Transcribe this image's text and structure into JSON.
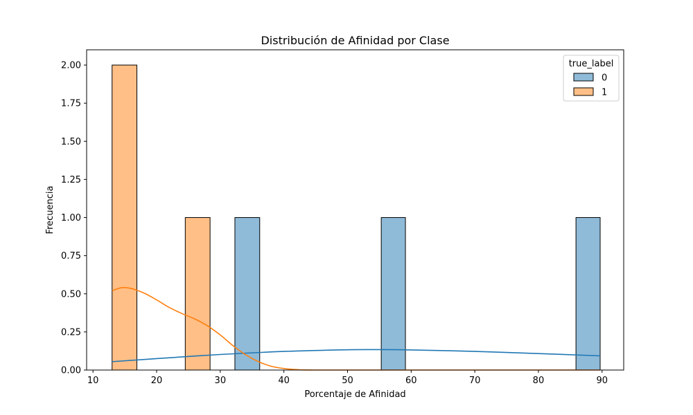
{
  "chart_data": {
    "type": "bar",
    "title": "Distribución de Afinidad por Clase",
    "xlabel": "Porcentaje de Afinidad",
    "ylabel": "Frecuencia",
    "xlim": [
      9,
      93.4
    ],
    "ylim": [
      0,
      2.1
    ],
    "xticks": [
      10,
      20,
      30,
      40,
      50,
      60,
      70,
      80,
      90
    ],
    "yticks": [
      0,
      0.25,
      0.5,
      0.75,
      1.0,
      1.25,
      1.5,
      1.75,
      2.0
    ],
    "ytick_labels": [
      "0.00",
      "0.25",
      "0.50",
      "0.75",
      "1.00",
      "1.25",
      "1.50",
      "1.75",
      "2.00"
    ],
    "grid": false,
    "legend": {
      "title": "true_label",
      "placement": "top-right"
    },
    "series": [
      {
        "name": "0",
        "color": "#1f77b4",
        "bars": [
          {
            "x0": 32.3,
            "x1": 36.2,
            "count": 1
          },
          {
            "x0": 55.3,
            "x1": 59.1,
            "count": 1
          },
          {
            "x0": 85.9,
            "x1": 89.7,
            "count": 1
          }
        ],
        "kde": [
          [
            13.0,
            0.055
          ],
          [
            20,
            0.075
          ],
          [
            30,
            0.102
          ],
          [
            40,
            0.122
          ],
          [
            50,
            0.133
          ],
          [
            55,
            0.134
          ],
          [
            60,
            0.132
          ],
          [
            70,
            0.122
          ],
          [
            80,
            0.108
          ],
          [
            89.7,
            0.093
          ]
        ]
      },
      {
        "name": "1",
        "color": "#ff7f0e",
        "bars": [
          {
            "x0": 13.0,
            "x1": 16.9,
            "count": 2
          },
          {
            "x0": 24.5,
            "x1": 28.4,
            "count": 1
          }
        ],
        "kde": [
          [
            13.0,
            0.52
          ],
          [
            14.5,
            0.54
          ],
          [
            16,
            0.535
          ],
          [
            18,
            0.505
          ],
          [
            20,
            0.46
          ],
          [
            22,
            0.41
          ],
          [
            24,
            0.37
          ],
          [
            26,
            0.335
          ],
          [
            28,
            0.29
          ],
          [
            30,
            0.23
          ],
          [
            32,
            0.16
          ],
          [
            34,
            0.1
          ],
          [
            36,
            0.055
          ],
          [
            38,
            0.025
          ],
          [
            40,
            0.01
          ],
          [
            42,
            0.003
          ],
          [
            45,
            0.0
          ],
          [
            60,
            0.0
          ],
          [
            89.7,
            0.0
          ]
        ]
      }
    ]
  }
}
